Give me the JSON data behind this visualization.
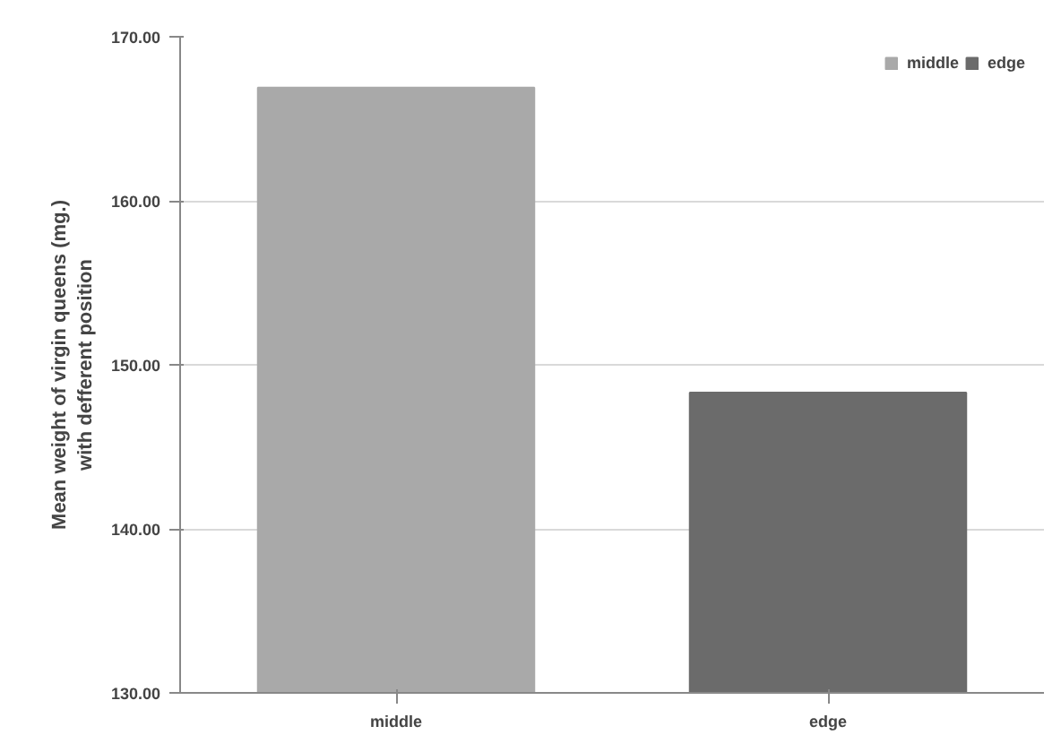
{
  "chart_data": {
    "type": "bar",
    "categories": [
      "middle",
      "edge"
    ],
    "series": [
      {
        "name": "middle",
        "color": "#a9a9a9",
        "values": [
          166.9,
          null
        ]
      },
      {
        "name": "edge",
        "color": "#6b6b6b",
        "values": [
          null,
          148.3
        ]
      }
    ],
    "ylabel": "Mean weight of virgin queens (mg.)\nwith defferent position",
    "ylim": [
      130,
      170
    ],
    "yticks": [
      {
        "value": 130,
        "label": "130.00"
      },
      {
        "value": 140,
        "label": "140.00"
      },
      {
        "value": 150,
        "label": "150.00"
      },
      {
        "value": 160,
        "label": "160.00"
      },
      {
        "value": 170,
        "label": "170.00"
      }
    ],
    "grid": "y",
    "legend": "top right"
  }
}
